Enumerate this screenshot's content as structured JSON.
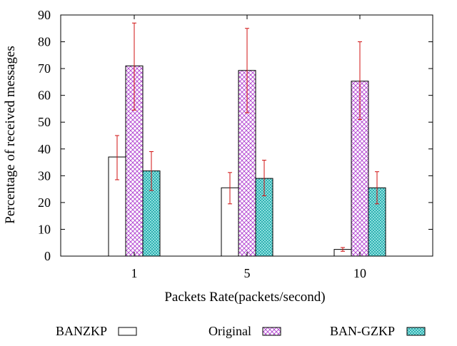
{
  "chart_data": {
    "type": "bar",
    "categories": [
      "1",
      "5",
      "10"
    ],
    "series": [
      {
        "name": "BANZKP",
        "values": [
          37,
          25.5,
          2.5
        ],
        "error_low": [
          28.5,
          19.5,
          1.8
        ],
        "error_high": [
          45,
          31.2,
          3.2
        ],
        "fill": "#ffffff",
        "pattern": "none"
      },
      {
        "name": "Original",
        "values": [
          71,
          69.3,
          65.3
        ],
        "error_low": [
          54.5,
          53.5,
          51
        ],
        "error_high": [
          87,
          85,
          80
        ],
        "fill": "#c060e0",
        "pattern": "crosshatch"
      },
      {
        "name": "BAN-GZKP",
        "values": [
          31.8,
          29,
          25.5
        ],
        "error_low": [
          24.5,
          22.5,
          19.5
        ],
        "error_high": [
          39,
          35.8,
          31.5
        ],
        "fill": "#40c0c0",
        "pattern": "dots"
      }
    ],
    "title": "",
    "xlabel": "Packets Rate(packets/second)",
    "ylabel": "Percentage of received messages",
    "ylim": [
      0,
      90
    ],
    "yticks": [
      0,
      10,
      20,
      30,
      40,
      50,
      60,
      70,
      80,
      90
    ],
    "grid": false,
    "legend_position": "bottom",
    "error_bar_color": "#d01010"
  }
}
